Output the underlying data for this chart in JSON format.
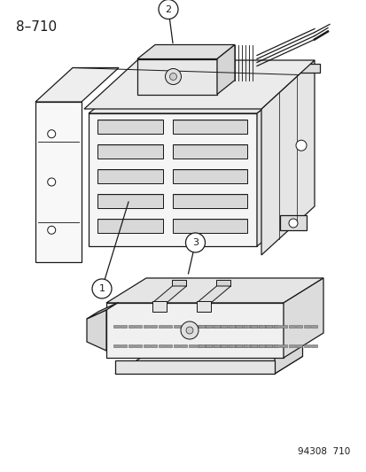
{
  "title_label": "8–710",
  "footer_label": "94308  710",
  "bg_color": "#ffffff",
  "line_color": "#1a1a1a",
  "lw": 0.9
}
